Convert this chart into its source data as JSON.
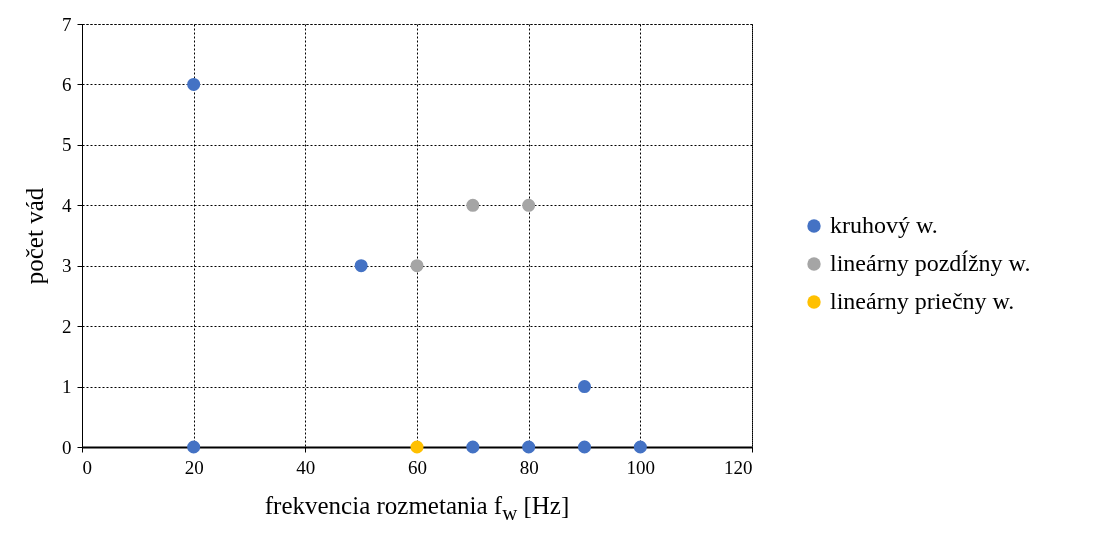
{
  "chart_data": {
    "type": "scatter",
    "xlabel": "frekvencia rozmetania f$_{w}$ [Hz]",
    "ylabel": "počet vád",
    "series": [
      {
        "name": "kruhový w.",
        "color": "#4472c4",
        "x": [
          20,
          20,
          50,
          70,
          80,
          90,
          90,
          100
        ],
        "values": [
          6,
          0,
          3,
          0,
          0,
          1,
          0,
          0
        ]
      },
      {
        "name": "lineárny pozdĺžny w.",
        "color": "#a5a5a5",
        "x": [
          60,
          70,
          80
        ],
        "values": [
          3,
          4,
          4
        ]
      },
      {
        "name": "lineárny priečny w.",
        "color": "#ffc000",
        "x": [
          60
        ],
        "values": [
          0
        ]
      }
    ],
    "xlim": [
      0,
      120
    ],
    "xticks": [
      0,
      20,
      40,
      60,
      80,
      100,
      120
    ],
    "ylim": [
      0,
      7
    ],
    "yticks": [
      0,
      1,
      2,
      3,
      4,
      5,
      6,
      7
    ],
    "grid": true,
    "legend": "right",
    "marker": "circle"
  }
}
